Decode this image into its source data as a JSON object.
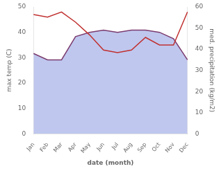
{
  "chart_data": {
    "type": "line",
    "categories": [
      "Jan",
      "Feb",
      "Mar",
      "Apr",
      "May",
      "Jun",
      "Jul",
      "Aug",
      "Sep",
      "Oct",
      "Nov",
      "Dec"
    ],
    "series": [
      {
        "type": "area",
        "color": "#aab4e8",
        "axis": "y2",
        "values": [
          38,
          35,
          35,
          46,
          48,
          49,
          48,
          49,
          49,
          48,
          45,
          35
        ]
      },
      {
        "type": "line",
        "color": "#7b3b6e",
        "axis": "y2",
        "values": [
          38,
          35,
          35,
          46,
          48,
          49,
          48,
          49,
          49,
          48,
          45,
          35
        ]
      },
      {
        "type": "line",
        "color": "#c03030",
        "values": [
          47,
          46,
          48,
          44,
          39,
          33,
          32,
          33,
          38,
          35,
          35,
          48
        ]
      }
    ],
    "xlabel": "date (month)",
    "ylabel": "max temp (C)",
    "y2label": "med. precipitation (kg/m2)",
    "ylim": [
      0,
      50
    ],
    "yticks": [
      0,
      10,
      20,
      30,
      40,
      50
    ],
    "y2lim": [
      0,
      60
    ],
    "y2ticks": [
      0,
      10,
      20,
      30,
      40,
      50,
      60
    ],
    "grid": false
  }
}
